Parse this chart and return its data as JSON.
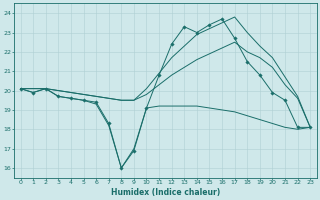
{
  "xlabel": "Humidex (Indice chaleur)",
  "xlim": [
    -0.5,
    23.5
  ],
  "ylim": [
    15.5,
    24.5
  ],
  "xticks": [
    0,
    1,
    2,
    3,
    4,
    5,
    6,
    7,
    8,
    9,
    10,
    11,
    12,
    13,
    14,
    15,
    16,
    17,
    18,
    19,
    20,
    21,
    22,
    23
  ],
  "yticks": [
    16,
    17,
    18,
    19,
    20,
    21,
    22,
    23,
    24
  ],
  "bg_color": "#cfe8ea",
  "grid_color": "#b0d0d3",
  "line_color": "#1a6e6a",
  "lines": [
    {
      "x": [
        0,
        1,
        2,
        3,
        4,
        5,
        6,
        7,
        8,
        9,
        10,
        11,
        12,
        13,
        14,
        15,
        16,
        17,
        18,
        19,
        20,
        21,
        22,
        23
      ],
      "y": [
        20.1,
        19.9,
        20.1,
        19.7,
        19.6,
        19.5,
        19.4,
        18.3,
        16.0,
        16.9,
        19.1,
        20.8,
        22.4,
        23.3,
        23.0,
        23.4,
        23.7,
        22.7,
        21.5,
        20.8,
        19.9,
        19.5,
        18.1,
        18.1
      ],
      "marker": "D",
      "markersize": 1.8
    },
    {
      "x": [
        0,
        1,
        2,
        3,
        4,
        5,
        6,
        7,
        8,
        9,
        10,
        11,
        12,
        13,
        14,
        15,
        16,
        17,
        18,
        19,
        20,
        21,
        22,
        23
      ],
      "y": [
        20.1,
        19.9,
        20.1,
        19.7,
        19.6,
        19.5,
        19.3,
        18.2,
        16.0,
        17.0,
        19.1,
        19.2,
        19.2,
        19.2,
        19.2,
        19.1,
        19.0,
        18.9,
        18.7,
        18.5,
        18.3,
        18.1,
        18.0,
        18.1
      ],
      "marker": null,
      "markersize": 0
    },
    {
      "x": [
        0,
        1,
        2,
        3,
        4,
        5,
        6,
        7,
        8,
        9,
        10,
        11,
        12,
        13,
        14,
        15,
        16,
        17,
        18,
        19,
        20,
        21,
        22,
        23
      ],
      "y": [
        20.1,
        20.1,
        20.1,
        20.0,
        19.9,
        19.8,
        19.7,
        19.6,
        19.5,
        19.5,
        19.8,
        20.3,
        20.8,
        21.2,
        21.6,
        21.9,
        22.2,
        22.5,
        22.0,
        21.7,
        21.2,
        20.3,
        19.6,
        18.1
      ],
      "marker": null,
      "markersize": 0
    },
    {
      "x": [
        0,
        1,
        2,
        3,
        4,
        5,
        6,
        7,
        8,
        9,
        10,
        11,
        12,
        13,
        14,
        15,
        16,
        17,
        18,
        19,
        20,
        21,
        22,
        23
      ],
      "y": [
        20.1,
        20.1,
        20.1,
        20.0,
        19.9,
        19.8,
        19.7,
        19.6,
        19.5,
        19.5,
        20.1,
        20.9,
        21.7,
        22.3,
        22.9,
        23.2,
        23.5,
        23.8,
        23.0,
        22.3,
        21.7,
        20.7,
        19.7,
        18.1
      ],
      "marker": null,
      "markersize": 0
    }
  ]
}
